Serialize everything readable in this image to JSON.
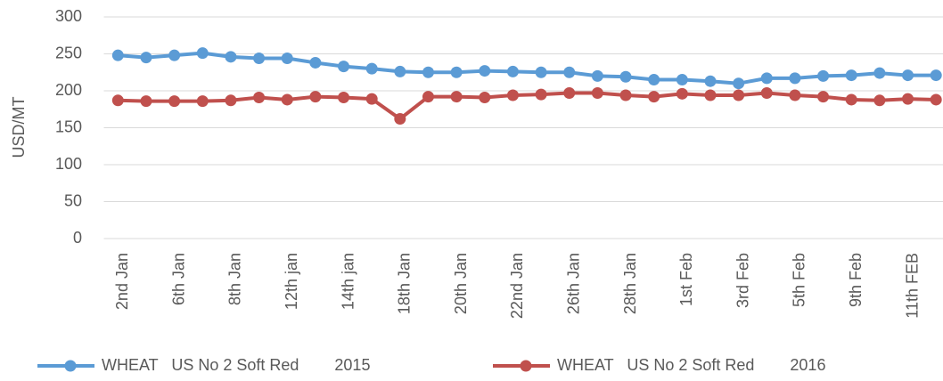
{
  "chart_data": {
    "type": "line",
    "y_label": "USD/MT",
    "categories": [
      "2nd Jan",
      null,
      "6th Jan",
      null,
      "8th Jan",
      null,
      "12th jan",
      null,
      "14th jan",
      null,
      "18th Jan",
      null,
      "20th Jan",
      null,
      "22nd Jan",
      null,
      "26th Jan",
      null,
      "28th Jan",
      null,
      "1st Feb",
      null,
      "3rd Feb",
      null,
      "5th Feb",
      null,
      "9th Feb",
      null,
      "11th FEB",
      null
    ],
    "series": [
      {
        "name": "WHEAT   US No 2 Soft Red        2015",
        "color": "#5b9bd5",
        "values": [
          248,
          245,
          248,
          251,
          246,
          244,
          244,
          238,
          233,
          230,
          226,
          225,
          225,
          227,
          226,
          225,
          225,
          220,
          219,
          215,
          215,
          213,
          210,
          217,
          217,
          220,
          221,
          224,
          221,
          221
        ]
      },
      {
        "name": "WHEAT   US No 2 Soft Red        2016",
        "color": "#c0504d",
        "values": [
          187,
          186,
          186,
          186,
          187,
          191,
          188,
          192,
          191,
          189,
          162,
          192,
          192,
          191,
          194,
          195,
          197,
          197,
          194,
          192,
          196,
          194,
          194,
          197,
          194,
          192,
          188,
          187,
          189,
          188
        ]
      }
    ],
    "ylim": [
      0,
      300
    ],
    "yticks": [
      0,
      50,
      100,
      150,
      200,
      250,
      300
    ],
    "grid": true,
    "legend": "bottom"
  }
}
